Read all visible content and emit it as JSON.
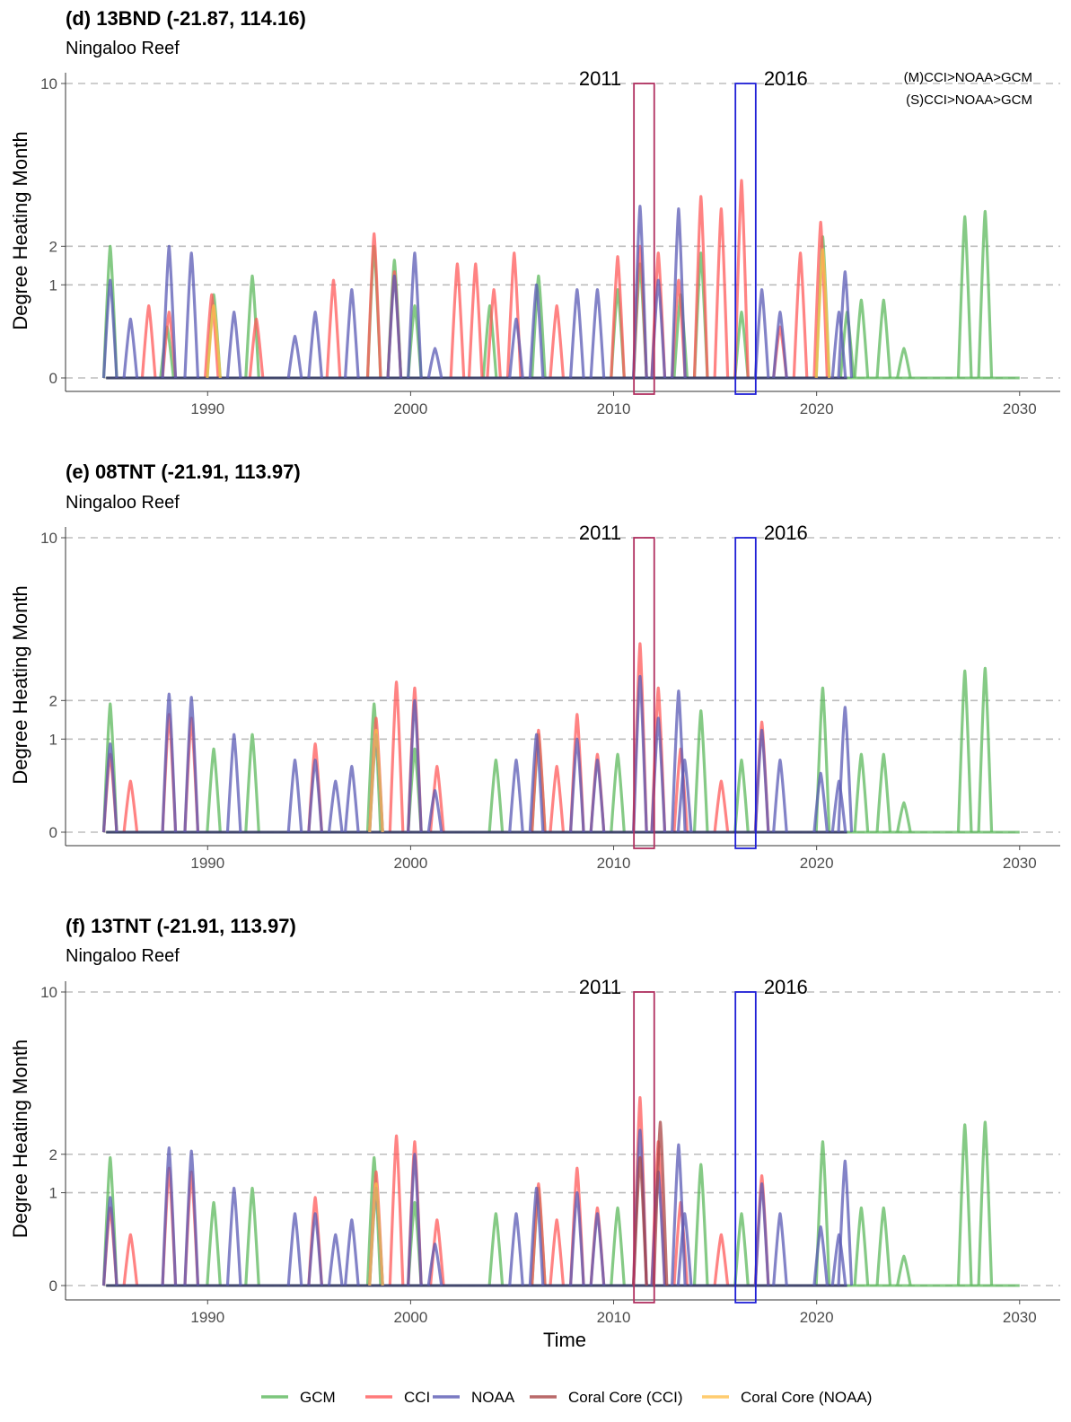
{
  "figure": {
    "x_axis_title": "Time",
    "legend": [
      {
        "label": "GCM",
        "color": "#5cb85c"
      },
      {
        "label": "CCI",
        "color": "#ff5a5a"
      },
      {
        "label": "NOAA",
        "color": "#5a5ab4"
      },
      {
        "label": "Coral Core (CCI)",
        "color": "#a84444"
      },
      {
        "label": "Coral Core (NOAA)",
        "color": "#ffc04c"
      }
    ]
  },
  "chart_data": [
    {
      "type": "line",
      "title": "(d) 13BND (-21.87, 114.16)",
      "subtitle": "Ningaloo Reef",
      "xlabel": "",
      "ylabel": "Degree Heating Month",
      "xlim": [
        1983,
        2032
      ],
      "x_ticks": [
        "1990",
        "2000",
        "2010",
        "2020",
        "2030"
      ],
      "y_ticks": [
        "0",
        "1",
        "2",
        "10"
      ],
      "y_scale": "sqrt",
      "reference_lines": [
        0,
        1,
        2,
        10
      ],
      "highlight_boxes": [
        {
          "label": "2011",
          "x": [
            2011,
            2012
          ],
          "y": [
            0,
            10
          ],
          "color": "#b03060"
        },
        {
          "label": "2016",
          "x": [
            2016,
            2017
          ],
          "y": [
            0,
            10
          ],
          "color": "#1f1fd6"
        }
      ],
      "notes": [
        "(M)CCI>NOAA>GCM",
        "(S)CCI>NOAA>GCM"
      ],
      "series": [
        {
          "name": "GCM",
          "color": "#5cb85c",
          "peaks": [
            [
              1985.2,
              2.0
            ],
            [
              1988.0,
              0.3
            ],
            [
              1990.3,
              0.8
            ],
            [
              1992.2,
              1.2
            ],
            [
              1998.2,
              2.0
            ],
            [
              1999.2,
              1.6
            ],
            [
              2000.2,
              0.6
            ],
            [
              2003.9,
              0.6
            ],
            [
              2006.3,
              1.2
            ],
            [
              2010.2,
              0.9
            ],
            [
              2011.3,
              1.5
            ],
            [
              2013.3,
              0.8
            ],
            [
              2014.3,
              1.8
            ],
            [
              2016.3,
              0.5
            ],
            [
              2020.3,
              2.3
            ],
            [
              2021.5,
              0.5
            ],
            [
              2022.2,
              0.7
            ],
            [
              2023.3,
              0.7
            ],
            [
              2024.3,
              0.1
            ],
            [
              2027.3,
              3.0
            ],
            [
              2028.3,
              3.2
            ]
          ]
        },
        {
          "name": "CCI",
          "color": "#ff5a5a",
          "peaks": [
            [
              1987.1,
              0.6
            ],
            [
              1988.1,
              0.5
            ],
            [
              1990.2,
              0.8
            ],
            [
              1992.4,
              0.4
            ],
            [
              1996.2,
              1.1
            ],
            [
              1998.2,
              2.4
            ],
            [
              1999.2,
              1.3
            ],
            [
              2002.3,
              1.5
            ],
            [
              2003.2,
              1.5
            ],
            [
              2004.1,
              0.9
            ],
            [
              2005.1,
              1.8
            ],
            [
              2007.2,
              0.6
            ],
            [
              2010.2,
              1.7
            ],
            [
              2011.3,
              2.0
            ],
            [
              2012.2,
              1.8
            ],
            [
              2013.2,
              1.1
            ],
            [
              2014.3,
              3.8
            ],
            [
              2015.3,
              3.3
            ],
            [
              2016.3,
              4.5
            ],
            [
              2018.2,
              0.3
            ],
            [
              2019.2,
              1.8
            ],
            [
              2020.2,
              2.8
            ]
          ]
        },
        {
          "name": "NOAA",
          "color": "#5a5ab4",
          "peaks": [
            [
              1985.2,
              1.1
            ],
            [
              1986.2,
              0.4
            ],
            [
              1988.1,
              2.0
            ],
            [
              1989.2,
              1.8
            ],
            [
              1991.3,
              0.5
            ],
            [
              1994.3,
              0.2
            ],
            [
              1995.3,
              0.5
            ],
            [
              1997.1,
              0.9
            ],
            [
              1999.2,
              1.2
            ],
            [
              2000.2,
              1.8
            ],
            [
              2001.2,
              0.1
            ],
            [
              2005.2,
              0.4
            ],
            [
              2006.2,
              1.0
            ],
            [
              2008.2,
              0.9
            ],
            [
              2009.2,
              0.9
            ],
            [
              2011.3,
              3.4
            ],
            [
              2012.2,
              1.1
            ],
            [
              2013.2,
              3.3
            ],
            [
              2017.3,
              0.9
            ],
            [
              2018.2,
              0.5
            ],
            [
              2021.1,
              0.5
            ],
            [
              2021.4,
              1.3
            ]
          ]
        },
        {
          "name": "Coral Core (CCI)",
          "color": "#a84444",
          "peaks": []
        },
        {
          "name": "Coral Core (NOAA)",
          "color": "#ffc04c",
          "peaks": [
            [
              1990.3,
              0.6
            ],
            [
              2020.3,
              1.9
            ]
          ]
        }
      ]
    },
    {
      "type": "line",
      "title": "(e) 08TNT (-21.91, 113.97)",
      "subtitle": "Ningaloo Reef",
      "xlabel": "",
      "ylabel": "Degree Heating Month",
      "xlim": [
        1983,
        2032
      ],
      "x_ticks": [
        "1990",
        "2000",
        "2010",
        "2020",
        "2030"
      ],
      "y_ticks": [
        "0",
        "1",
        "2",
        "10"
      ],
      "y_scale": "sqrt",
      "reference_lines": [
        0,
        1,
        2,
        10
      ],
      "highlight_boxes": [
        {
          "label": "2011",
          "x": [
            2011,
            2012
          ],
          "y": [
            0,
            10
          ],
          "color": "#b03060"
        },
        {
          "label": "2016",
          "x": [
            2016,
            2017
          ],
          "y": [
            0,
            10
          ],
          "color": "#1f1fd6"
        }
      ],
      "series": [
        {
          "name": "GCM",
          "color": "#5cb85c",
          "peaks": [
            [
              1985.2,
              1.9
            ],
            [
              1990.3,
              0.8
            ],
            [
              1992.2,
              1.1
            ],
            [
              1998.2,
              1.9
            ],
            [
              2000.2,
              0.8
            ],
            [
              2004.2,
              0.6
            ],
            [
              2006.3,
              1.1
            ],
            [
              2010.2,
              0.7
            ],
            [
              2014.3,
              1.7
            ],
            [
              2016.3,
              0.6
            ],
            [
              2020.3,
              2.4
            ],
            [
              2022.2,
              0.7
            ],
            [
              2023.3,
              0.7
            ],
            [
              2024.3,
              0.1
            ],
            [
              2027.3,
              3.0
            ],
            [
              2028.3,
              3.1
            ]
          ]
        },
        {
          "name": "CCI",
          "color": "#ff5a5a",
          "peaks": [
            [
              1985.2,
              0.7
            ],
            [
              1986.2,
              0.3
            ],
            [
              1988.1,
              1.6
            ],
            [
              1989.2,
              1.5
            ],
            [
              1995.3,
              0.9
            ],
            [
              1998.3,
              1.5
            ],
            [
              1999.3,
              2.6
            ],
            [
              2000.2,
              2.4
            ],
            [
              2001.3,
              0.5
            ],
            [
              2006.3,
              1.2
            ],
            [
              2007.2,
              0.5
            ],
            [
              2008.2,
              1.6
            ],
            [
              2009.2,
              0.7
            ],
            [
              2011.3,
              4.1
            ],
            [
              2012.2,
              2.4
            ],
            [
              2013.3,
              0.8
            ],
            [
              2015.3,
              0.3
            ],
            [
              2017.3,
              1.4
            ]
          ]
        },
        {
          "name": "NOAA",
          "color": "#5a5ab4",
          "peaks": [
            [
              1985.2,
              0.9
            ],
            [
              1988.1,
              2.2
            ],
            [
              1989.2,
              2.1
            ],
            [
              1991.3,
              1.1
            ],
            [
              1994.3,
              0.6
            ],
            [
              1995.3,
              0.6
            ],
            [
              1996.3,
              0.3
            ],
            [
              1997.1,
              0.5
            ],
            [
              1998.3,
              1.1
            ],
            [
              2000.2,
              2.0
            ],
            [
              2001.2,
              0.2
            ],
            [
              2005.2,
              0.6
            ],
            [
              2006.2,
              1.1
            ],
            [
              2008.2,
              1.0
            ],
            [
              2009.2,
              0.6
            ],
            [
              2011.3,
              2.8
            ],
            [
              2012.2,
              1.5
            ],
            [
              2013.2,
              2.3
            ],
            [
              2013.5,
              0.6
            ],
            [
              2017.3,
              1.2
            ],
            [
              2018.2,
              0.6
            ],
            [
              2020.2,
              0.4
            ],
            [
              2021.1,
              0.3
            ],
            [
              2021.4,
              1.8
            ]
          ]
        },
        {
          "name": "Coral Core (CCI)",
          "color": "#a84444",
          "peaks": []
        },
        {
          "name": "Coral Core (NOAA)",
          "color": "#ffc04c",
          "peaks": [
            [
              1998.3,
              1.2
            ]
          ]
        }
      ]
    },
    {
      "type": "line",
      "title": "(f) 13TNT (-21.91, 113.97)",
      "subtitle": "Ningaloo Reef",
      "xlabel": "Time",
      "ylabel": "Degree Heating Month",
      "xlim": [
        1983,
        2032
      ],
      "x_ticks": [
        "1990",
        "2000",
        "2010",
        "2020",
        "2030"
      ],
      "y_ticks": [
        "0",
        "1",
        "2",
        "10"
      ],
      "y_scale": "sqrt",
      "reference_lines": [
        0,
        1,
        2,
        10
      ],
      "highlight_boxes": [
        {
          "label": "2011",
          "x": [
            2011,
            2012
          ],
          "y": [
            0,
            10
          ],
          "color": "#b03060"
        },
        {
          "label": "2016",
          "x": [
            2016,
            2017
          ],
          "y": [
            0,
            10
          ],
          "color": "#1f1fd6"
        }
      ],
      "series": [
        {
          "name": "GCM",
          "color": "#5cb85c",
          "peaks": [
            [
              1985.2,
              1.9
            ],
            [
              1990.3,
              0.8
            ],
            [
              1992.2,
              1.1
            ],
            [
              1998.2,
              1.9
            ],
            [
              2000.2,
              0.8
            ],
            [
              2004.2,
              0.6
            ],
            [
              2006.3,
              1.1
            ],
            [
              2010.2,
              0.7
            ],
            [
              2014.3,
              1.7
            ],
            [
              2016.3,
              0.6
            ],
            [
              2020.3,
              2.4
            ],
            [
              2022.2,
              0.7
            ],
            [
              2023.3,
              0.7
            ],
            [
              2024.3,
              0.1
            ],
            [
              2027.3,
              3.0
            ],
            [
              2028.3,
              3.1
            ]
          ]
        },
        {
          "name": "CCI",
          "color": "#ff5a5a",
          "peaks": [
            [
              1985.2,
              0.7
            ],
            [
              1986.2,
              0.3
            ],
            [
              1988.1,
              1.6
            ],
            [
              1989.2,
              1.5
            ],
            [
              1995.3,
              0.9
            ],
            [
              1998.3,
              1.5
            ],
            [
              1999.3,
              2.6
            ],
            [
              2000.2,
              2.4
            ],
            [
              2001.3,
              0.5
            ],
            [
              2006.3,
              1.2
            ],
            [
              2007.2,
              0.5
            ],
            [
              2008.2,
              1.6
            ],
            [
              2009.2,
              0.7
            ],
            [
              2011.3,
              4.1
            ],
            [
              2012.2,
              2.4
            ],
            [
              2013.3,
              0.8
            ],
            [
              2015.3,
              0.3
            ],
            [
              2017.3,
              1.4
            ]
          ]
        },
        {
          "name": "NOAA",
          "color": "#5a5ab4",
          "peaks": [
            [
              1985.2,
              0.9
            ],
            [
              1988.1,
              2.2
            ],
            [
              1989.2,
              2.1
            ],
            [
              1991.3,
              1.1
            ],
            [
              1994.3,
              0.6
            ],
            [
              1995.3,
              0.6
            ],
            [
              1996.3,
              0.3
            ],
            [
              1997.1,
              0.5
            ],
            [
              1998.3,
              1.1
            ],
            [
              2000.2,
              2.0
            ],
            [
              2001.2,
              0.2
            ],
            [
              2005.2,
              0.6
            ],
            [
              2006.2,
              1.1
            ],
            [
              2008.2,
              1.0
            ],
            [
              2009.2,
              0.6
            ],
            [
              2011.3,
              2.8
            ],
            [
              2012.2,
              1.5
            ],
            [
              2013.2,
              2.3
            ],
            [
              2013.5,
              0.6
            ],
            [
              2017.3,
              1.2
            ],
            [
              2018.2,
              0.6
            ],
            [
              2020.2,
              0.4
            ],
            [
              2021.1,
              0.3
            ],
            [
              2021.4,
              1.8
            ]
          ]
        },
        {
          "name": "Coral Core (CCI)",
          "color": "#a84444",
          "peaks": [
            [
              2011.3,
              1.9
            ],
            [
              2012.3,
              3.1
            ]
          ]
        },
        {
          "name": "Coral Core (NOAA)",
          "color": "#ffc04c",
          "peaks": [
            [
              1998.3,
              1.2
            ]
          ]
        }
      ]
    }
  ]
}
